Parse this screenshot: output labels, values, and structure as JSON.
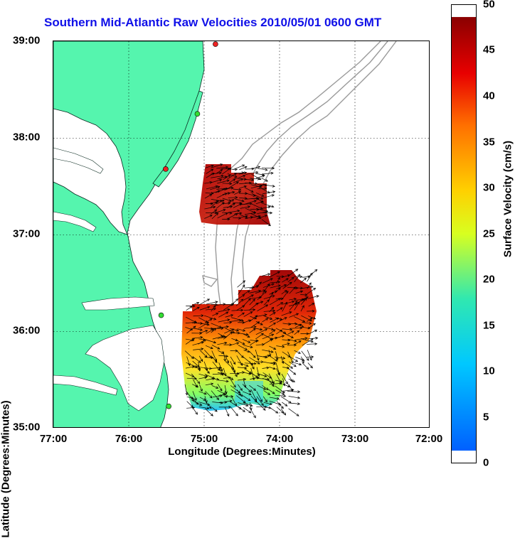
{
  "title": "Southern Mid-Atlantic Raw Velocities 2010/05/01 0600 GMT",
  "xlabel": "Longitude (Degrees:Minutes)",
  "ylabel": "Latitude (Degrees:Minutes)",
  "x_ticks": [
    "77:00",
    "76:00",
    "75:00",
    "74:00",
    "73:00",
    "72:00"
  ],
  "y_ticks": [
    "39:00",
    "38:00",
    "37:00",
    "36:00",
    "35:00"
  ],
  "colorbar": {
    "label": "Surface Velocity (cm/s)",
    "ticks": [
      "50",
      "45",
      "40",
      "35",
      "30",
      "25",
      "20",
      "15",
      "10",
      "5",
      "0"
    ],
    "range": [
      0,
      50
    ]
  },
  "colors": {
    "land": "#55f5ae",
    "title": "#1010e8",
    "bathymetry": "#9a9a9a",
    "station": "#33dd33",
    "station_alt": "#ee2222"
  },
  "chart_data": {
    "type": "map",
    "xlim": [
      "77:00",
      "72:00"
    ],
    "ylim": [
      "35:00",
      "39:00"
    ],
    "grid": true,
    "stations": [
      {
        "lon": -74.85,
        "lat": 38.97,
        "status": "red"
      },
      {
        "lon": -75.09,
        "lat": 38.25,
        "status": "green"
      },
      {
        "lon": -75.51,
        "lat": 37.68,
        "status": "red"
      },
      {
        "lon": -75.57,
        "lat": 36.17,
        "status": "green"
      },
      {
        "lon": -75.47,
        "lat": 35.23,
        "status": "green"
      }
    ],
    "velocity_regions": [
      {
        "name": "north",
        "lon_range": [
          -75.1,
          -74.15
        ],
        "lat_range": [
          36.9,
          37.7
        ],
        "speed_cm_s": 48
      },
      {
        "name": "south",
        "lon_range": [
          -75.3,
          -73.6
        ],
        "lat_range": [
          35.2,
          36.4
        ],
        "speed_cm_s": 30
      }
    ]
  }
}
